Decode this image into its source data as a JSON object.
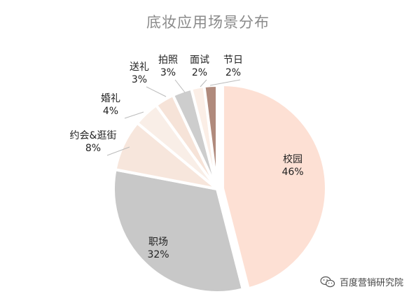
{
  "chart_data": {
    "type": "pie",
    "title": "底妆应用场景分布",
    "slices": [
      {
        "label": "校园",
        "value": 46,
        "value_text": "46%",
        "color": "#fde0d4"
      },
      {
        "label": "职场",
        "value": 32,
        "value_text": "32%",
        "color": "#c8c8c8"
      },
      {
        "label": "约会&逛街",
        "value": 8,
        "value_text": "8%",
        "color": "#f7e6dc"
      },
      {
        "label": "婚礼",
        "value": 4,
        "value_text": "4%",
        "color": "#f9eee7"
      },
      {
        "label": "送礼",
        "value": 3,
        "value_text": "3%",
        "color": "#f6e3d8"
      },
      {
        "label": "拍照",
        "value": 3,
        "value_text": "3%",
        "color": "#cdcdcd"
      },
      {
        "label": "面试",
        "value": 2,
        "value_text": "2%",
        "color": "#fbeee6"
      },
      {
        "label": "节日",
        "value": 2,
        "value_text": "2%",
        "color": "#b08a7c"
      }
    ]
  },
  "watermark": {
    "text": "百度营销研究院",
    "icon": "wechat-icon"
  }
}
